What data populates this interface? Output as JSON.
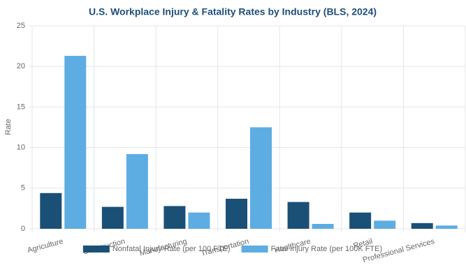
{
  "chart_data": {
    "type": "bar",
    "title": "U.S. Workplace Injury & Fatality Rates by Industry (BLS, 2024)",
    "y_label": "Rate",
    "categories": [
      "Agriculture",
      "Construction",
      "Manufacturing",
      "Transportation",
      "Healthcare",
      "Retail",
      "Professional Services"
    ],
    "series": [
      {
        "name": "Nonfatal Injury Rate (per 100 FTE)",
        "color": "#1b5076",
        "values": [
          4.4,
          2.7,
          2.8,
          3.7,
          3.3,
          2.0,
          0.7
        ]
      },
      {
        "name": "Fatal Injury Rate (per 100K FTE)",
        "color": "#5dade2",
        "values": [
          21.3,
          9.2,
          2.0,
          12.5,
          0.6,
          1.0,
          0.4
        ]
      }
    ],
    "ylim": [
      0,
      25
    ],
    "yticks": [
      0,
      5,
      10,
      15,
      20,
      25
    ],
    "grid": true,
    "legend": "bottom"
  }
}
